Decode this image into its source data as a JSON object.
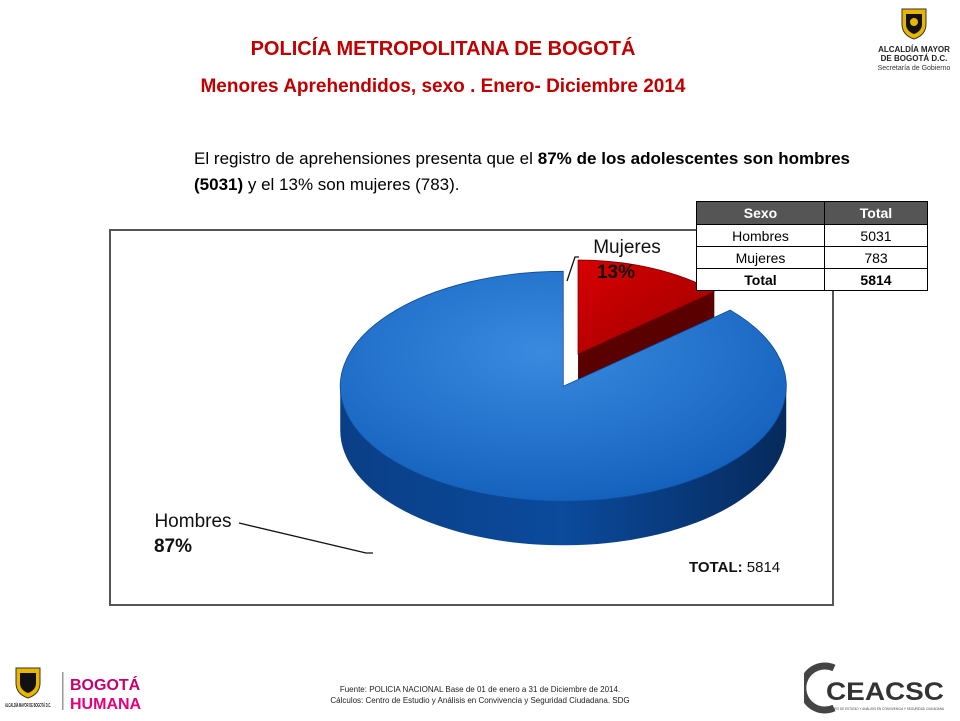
{
  "header": {
    "title": "POLICÍA METROPOLITANA DE BOGOTÁ",
    "subtitle": "Menores Aprehendidos, sexo . Enero- Diciembre 2014"
  },
  "logo_top": {
    "line1": "ALCALDÍA MAYOR",
    "line2": "DE BOGOTÁ D.C.",
    "line3": "Secretaría de Gobierno"
  },
  "intro": {
    "part1": "El registro de aprehensiones presenta que el  ",
    "bold1": "87% de los adolescentes son hombres (5031)",
    "part2": " y el 13% son mujeres (783)."
  },
  "table": {
    "headers": [
      "Sexo",
      "Total"
    ],
    "rows": [
      {
        "sexo": "Hombres",
        "total": "5031"
      },
      {
        "sexo": "Mujeres",
        "total": "783"
      }
    ],
    "total_row": {
      "sexo": "Total",
      "total": "5814"
    }
  },
  "chart_data": {
    "type": "pie",
    "style": "3d-exploded",
    "slices": [
      {
        "label": "Hombres",
        "value": 5031,
        "percent_label": "87%",
        "color": "#1a68c8"
      },
      {
        "label": "Mujeres",
        "value": 783,
        "percent_label": "13%",
        "color": "#c80000"
      }
    ],
    "total_label": "TOTAL:",
    "total_value": "5814"
  },
  "footer": {
    "line1": "Fuente: POLICIA NACIONAL Base de 01 de enero a 31 de Diciembre de 2014.",
    "line2": "Cálculos: Centro de Estudio y Análisis en Convivencia y Seguridad Ciudadana. SDG"
  },
  "logos": {
    "bottom_left_brand": "BOGOTÁ",
    "bottom_left_brand2": "HUMANA",
    "bottom_left_small": "ALCALDÍA MAYOR DE BOGOTÁ D.C.",
    "bottom_right_brand": "CEACSC",
    "bottom_right_small": "CENTRO DE ESTUDIO Y ANÁLISIS EN CONVIVENCIA Y SEGURIDAD CIUDADANA"
  }
}
